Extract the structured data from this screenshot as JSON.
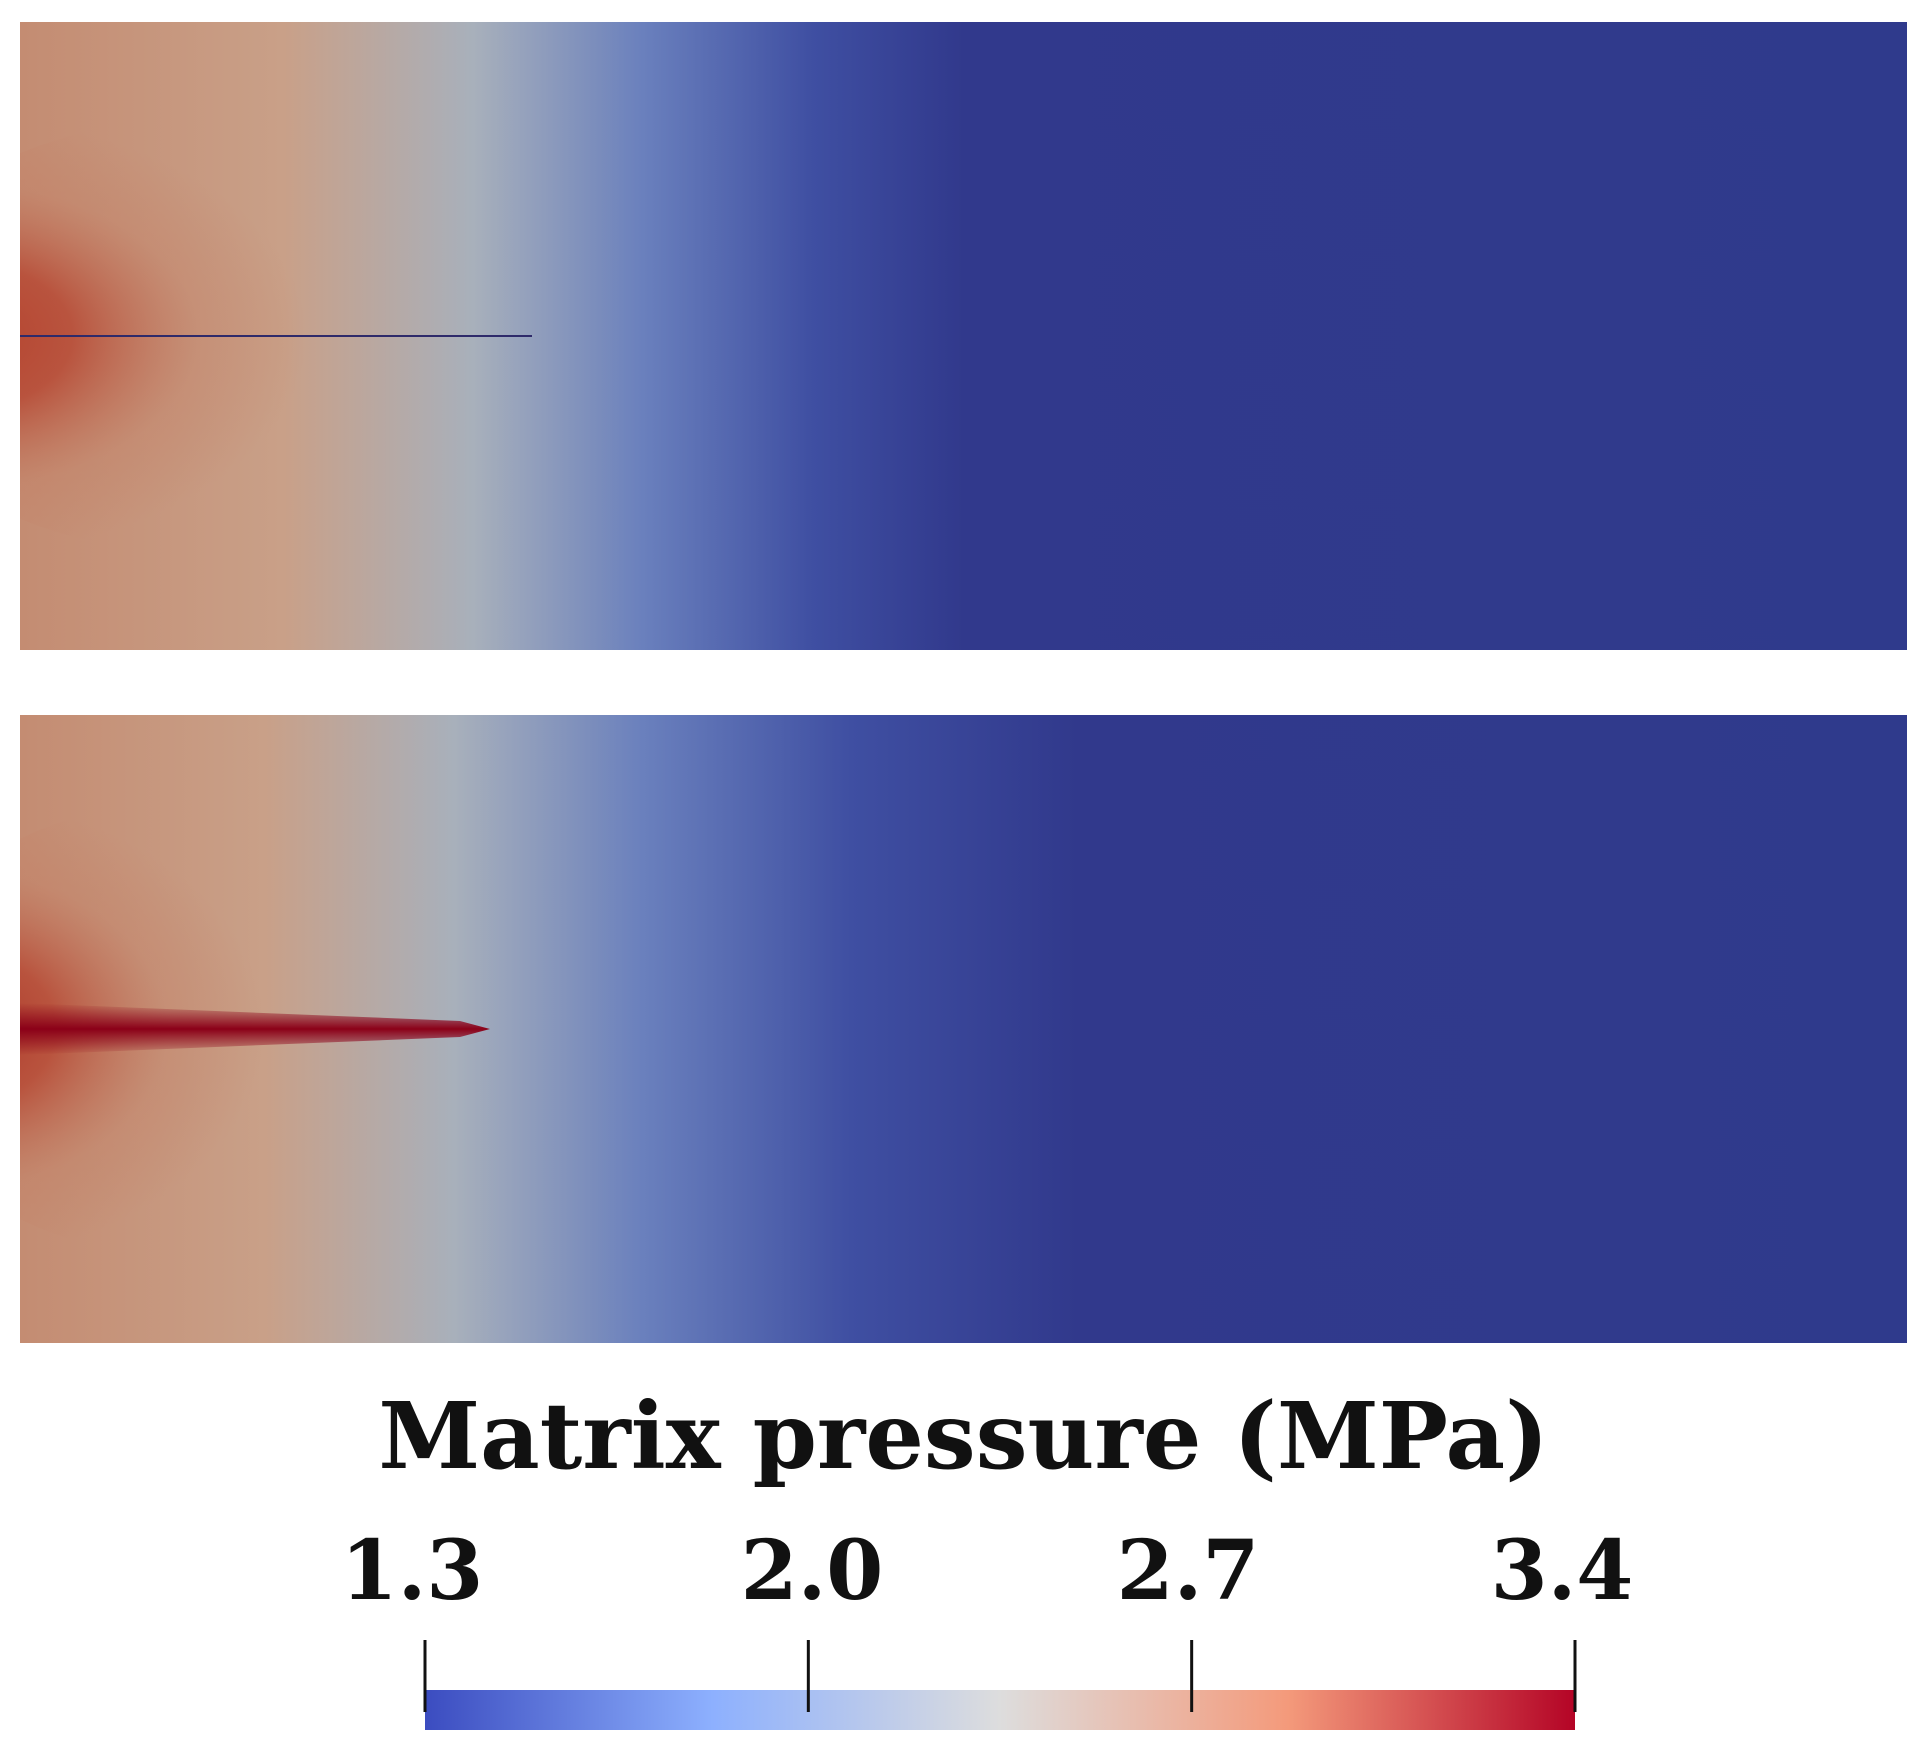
{
  "colorbar": {
    "title": "Matrix pressure (MPa)",
    "min": 1.3,
    "max": 3.4,
    "ticks": [
      "1.3",
      "2.0",
      "2.7",
      "3.4"
    ],
    "tick_values": [
      1.3,
      2.0,
      2.7,
      3.4
    ],
    "colormap": "Cool to Warm",
    "colormap_stops": [
      "#3b4cc0",
      "#8db0fe",
      "#dddddd",
      "#f49a7b",
      "#b40426"
    ]
  },
  "panels": [
    {
      "field_colors": {
        "fracture": "#2e2a6a",
        "near": "#b5402c",
        "mid": "#c99a80",
        "front": "#a8b0bb",
        "far": "#2f3a8c"
      }
    },
    {
      "field_colors": {
        "fracture": "#8b0018",
        "near": "#b5402c",
        "mid": "#c99a80",
        "front": "#a8b0bb",
        "far": "#2f3a8c"
      }
    }
  ]
}
